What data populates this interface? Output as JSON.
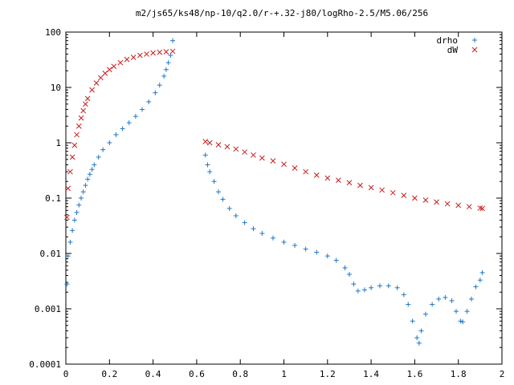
{
  "chart_data": {
    "type": "scatter",
    "title": "m2/js65/ks48/np-10/q2.0/r-+.32-j80/logRho-2.5/M5.06/256",
    "xlabel": "",
    "ylabel": "",
    "xlim": [
      0,
      2
    ],
    "ylim": [
      0.0001,
      100
    ],
    "yscale": "log",
    "grid": false,
    "legend_position": "top-right",
    "x_ticks": [
      "0",
      "0.2",
      "0.4",
      "0.6",
      "0.8",
      "1",
      "1.2",
      "1.4",
      "1.6",
      "1.8",
      "2"
    ],
    "y_ticks": [
      "0.0001",
      "0.001",
      "0.01",
      "0.1",
      "1",
      "10",
      "100"
    ],
    "series": [
      {
        "name": "drho",
        "marker": "plus",
        "color": "#1f77c4",
        "points": [
          [
            0.005,
            0.0028
          ],
          [
            0.01,
            0.009
          ],
          [
            0.02,
            0.016
          ],
          [
            0.03,
            0.026
          ],
          [
            0.04,
            0.04
          ],
          [
            0.05,
            0.055
          ],
          [
            0.06,
            0.075
          ],
          [
            0.07,
            0.1
          ],
          [
            0.08,
            0.13
          ],
          [
            0.09,
            0.17
          ],
          [
            0.1,
            0.22
          ],
          [
            0.11,
            0.27
          ],
          [
            0.12,
            0.33
          ],
          [
            0.13,
            0.4
          ],
          [
            0.15,
            0.55
          ],
          [
            0.17,
            0.75
          ],
          [
            0.2,
            1.0
          ],
          [
            0.23,
            1.4
          ],
          [
            0.26,
            1.8
          ],
          [
            0.29,
            2.3
          ],
          [
            0.32,
            3.0
          ],
          [
            0.35,
            4.0
          ],
          [
            0.38,
            5.5
          ],
          [
            0.41,
            8.0
          ],
          [
            0.43,
            11
          ],
          [
            0.45,
            16
          ],
          [
            0.46,
            21
          ],
          [
            0.47,
            28
          ],
          [
            0.48,
            38
          ],
          [
            0.49,
            70
          ],
          [
            0.64,
            0.6
          ],
          [
            0.65,
            0.4
          ],
          [
            0.66,
            0.3
          ],
          [
            0.68,
            0.2
          ],
          [
            0.7,
            0.13
          ],
          [
            0.72,
            0.095
          ],
          [
            0.75,
            0.065
          ],
          [
            0.78,
            0.048
          ],
          [
            0.82,
            0.036
          ],
          [
            0.86,
            0.028
          ],
          [
            0.9,
            0.023
          ],
          [
            0.95,
            0.019
          ],
          [
            1.0,
            0.016
          ],
          [
            1.05,
            0.014
          ],
          [
            1.1,
            0.012
          ],
          [
            1.15,
            0.0105
          ],
          [
            1.2,
            0.009
          ],
          [
            1.24,
            0.0075
          ],
          [
            1.28,
            0.0055
          ],
          [
            1.3,
            0.0042
          ],
          [
            1.32,
            0.0028
          ],
          [
            1.34,
            0.0021
          ],
          [
            1.37,
            0.0022
          ],
          [
            1.4,
            0.0024
          ],
          [
            1.44,
            0.0026
          ],
          [
            1.48,
            0.0026
          ],
          [
            1.52,
            0.0024
          ],
          [
            1.55,
            0.0018
          ],
          [
            1.57,
            0.0012
          ],
          [
            1.59,
            0.0006
          ],
          [
            1.61,
            0.0003
          ],
          [
            1.62,
            0.00024
          ],
          [
            1.63,
            0.0004
          ],
          [
            1.65,
            0.0008
          ],
          [
            1.68,
            0.0012
          ],
          [
            1.71,
            0.0015
          ],
          [
            1.74,
            0.0016
          ],
          [
            1.77,
            0.0014
          ],
          [
            1.79,
            0.0009
          ],
          [
            1.81,
            0.0006
          ],
          [
            1.82,
            0.00058
          ],
          [
            1.84,
            0.0009
          ],
          [
            1.86,
            0.0015
          ],
          [
            1.88,
            0.0025
          ],
          [
            1.9,
            0.0033
          ],
          [
            1.91,
            0.0045
          ]
        ]
      },
      {
        "name": "dW",
        "marker": "x",
        "color": "#c81e1e",
        "points": [
          [
            0.005,
            0.045
          ],
          [
            0.01,
            0.15
          ],
          [
            0.02,
            0.3
          ],
          [
            0.03,
            0.55
          ],
          [
            0.04,
            0.9
          ],
          [
            0.05,
            1.4
          ],
          [
            0.06,
            2.0
          ],
          [
            0.07,
            2.8
          ],
          [
            0.08,
            3.8
          ],
          [
            0.09,
            5.0
          ],
          [
            0.1,
            6.3
          ],
          [
            0.12,
            9.0
          ],
          [
            0.14,
            12
          ],
          [
            0.16,
            15
          ],
          [
            0.18,
            18
          ],
          [
            0.2,
            21
          ],
          [
            0.22,
            24
          ],
          [
            0.25,
            28
          ],
          [
            0.28,
            32
          ],
          [
            0.31,
            35
          ],
          [
            0.34,
            38
          ],
          [
            0.37,
            40
          ],
          [
            0.4,
            42
          ],
          [
            0.43,
            43
          ],
          [
            0.46,
            44
          ],
          [
            0.49,
            45
          ],
          [
            0.64,
            1.05
          ],
          [
            0.66,
            1.0
          ],
          [
            0.7,
            0.92
          ],
          [
            0.74,
            0.85
          ],
          [
            0.78,
            0.77
          ],
          [
            0.82,
            0.68
          ],
          [
            0.86,
            0.6
          ],
          [
            0.9,
            0.53
          ],
          [
            0.95,
            0.47
          ],
          [
            1.0,
            0.41
          ],
          [
            1.05,
            0.35
          ],
          [
            1.1,
            0.3
          ],
          [
            1.15,
            0.26
          ],
          [
            1.2,
            0.23
          ],
          [
            1.25,
            0.21
          ],
          [
            1.3,
            0.19
          ],
          [
            1.35,
            0.17
          ],
          [
            1.4,
            0.155
          ],
          [
            1.45,
            0.14
          ],
          [
            1.5,
            0.125
          ],
          [
            1.55,
            0.112
          ],
          [
            1.6,
            0.1
          ],
          [
            1.65,
            0.092
          ],
          [
            1.7,
            0.085
          ],
          [
            1.75,
            0.079
          ],
          [
            1.8,
            0.074
          ],
          [
            1.85,
            0.07
          ],
          [
            1.9,
            0.066
          ],
          [
            1.91,
            0.065
          ]
        ]
      }
    ]
  }
}
